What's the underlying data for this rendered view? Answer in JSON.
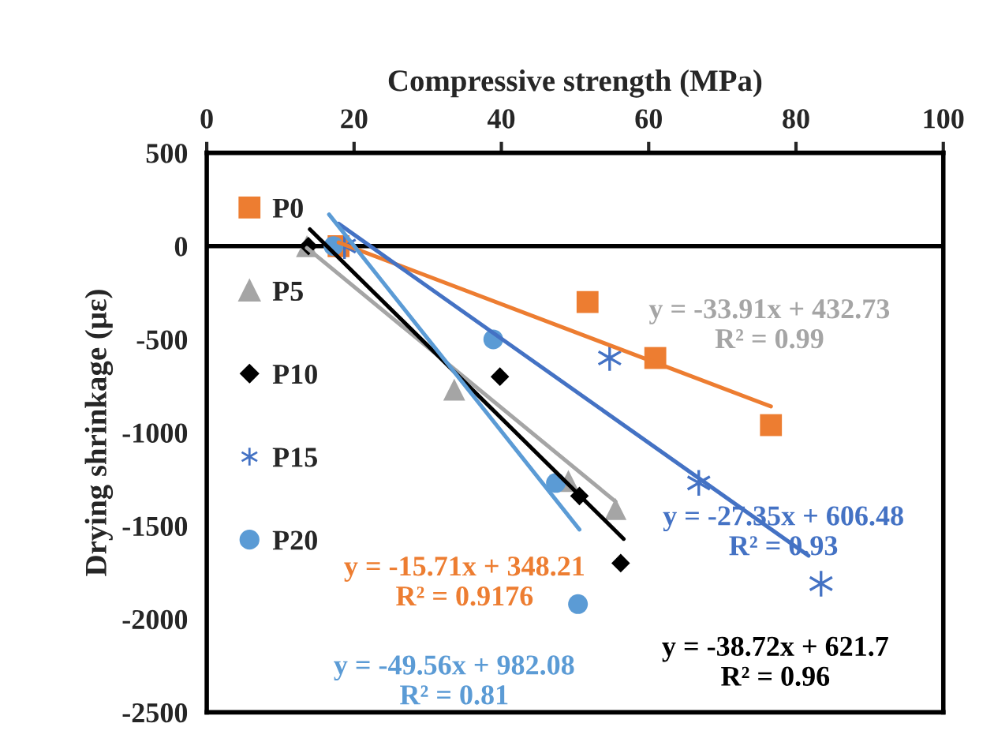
{
  "chart_data": {
    "type": "scatter",
    "xlabel": "Compressive strength (MPa)",
    "ylabel": "Drying shrinkage (με)",
    "xlim": [
      0,
      100
    ],
    "xticks": [
      0,
      20,
      40,
      60,
      80,
      100
    ],
    "ylim": [
      -2500,
      500
    ],
    "yticks": [
      -2500,
      -2000,
      -1500,
      -1000,
      -500,
      0,
      500
    ],
    "grid": false,
    "legend": "left",
    "ref_lines": [
      {
        "axis": "y",
        "value": 0,
        "color": "#000000"
      }
    ],
    "series": [
      {
        "name": "P0",
        "color": "#ed7d31",
        "marker": "square",
        "x": [
          17.9,
          51.7,
          60.9,
          76.6
        ],
        "values": [
          0,
          -300,
          -600,
          -960
        ]
      },
      {
        "name": "P5",
        "color": "#a5a5a5",
        "marker": "triangle",
        "x": [
          13.6,
          33.6,
          49.1,
          55.5
        ],
        "values": [
          0,
          -770,
          -1260,
          -1410
        ]
      },
      {
        "name": "P10",
        "color": "#000000",
        "marker": "diamond",
        "x": [
          13.8,
          39.8,
          50.6,
          56.2
        ],
        "values": [
          0,
          -700,
          -1340,
          -1700
        ]
      },
      {
        "name": "P15",
        "color": "#4472c4",
        "marker": "cross",
        "x": [
          18.7,
          54.7,
          66.8,
          83.4
        ],
        "values": [
          0,
          -600,
          -1270,
          -1810
        ]
      },
      {
        "name": "P20",
        "color": "#5b9bd5",
        "marker": "circle",
        "x": [
          17.2,
          38.9,
          47.4,
          50.4
        ],
        "values": [
          0,
          -500,
          -1270,
          -1920
        ]
      },
      {
        "type": "line",
        "color": "#ed7d31",
        "x": [
          17.9,
          76.6
        ],
        "values": [
          20,
          -860
        ]
      },
      {
        "type": "line",
        "color": "#a5a5a5",
        "x": [
          13.6,
          55.5
        ],
        "values": [
          -10,
          -1370
        ]
      },
      {
        "type": "line",
        "color": "#000000",
        "x": [
          14.0,
          56.6
        ],
        "values": [
          90,
          -1570
        ]
      },
      {
        "type": "line",
        "color": "#4472c4",
        "x": [
          17.9,
          81.7
        ],
        "values": [
          120,
          -1660
        ]
      },
      {
        "type": "line",
        "color": "#5b9bd5",
        "x": [
          16.6,
          50.6
        ],
        "values": [
          170,
          -1520
        ]
      }
    ],
    "annotations": [
      "y = -33.91x + 432.73\nR² = 0.99",
      "y = -15.71x + 348.21\nR² = 0.9176",
      "y = -49.56x + 982.08\nR² = 0.81",
      "y = -27.35x + 606.48\nR² = 0.93",
      "y = -38.72x + 621.7\nR² = 0.96"
    ]
  }
}
